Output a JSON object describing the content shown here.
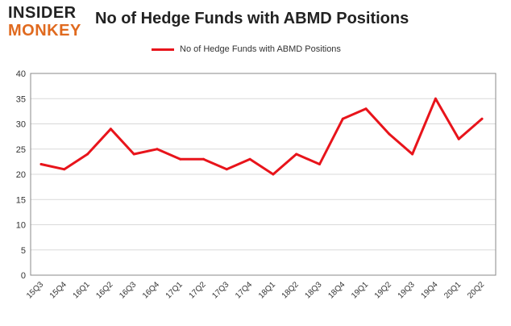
{
  "logo": {
    "line1": "INSIDER",
    "line2": "MONKEY"
  },
  "colors": {
    "series": "#e8141b",
    "grid": "#d9d9d9",
    "frame": "#888888",
    "logo_dark": "#222222",
    "logo_orange": "#e06a1f"
  },
  "chart_data": {
    "type": "line",
    "title": "No of Hedge Funds with ABMD Positions",
    "categories": [
      "15Q3",
      "15Q4",
      "16Q1",
      "16Q2",
      "16Q3",
      "16Q4",
      "17Q1",
      "17Q2",
      "17Q3",
      "17Q4",
      "18Q1",
      "18Q2",
      "18Q3",
      "18Q4",
      "19Q1",
      "19Q2",
      "19Q3",
      "19Q4",
      "20Q1",
      "20Q2"
    ],
    "series": [
      {
        "name": "No of Hedge Funds with ABMD Positions",
        "values": [
          22,
          21,
          24,
          29,
          24,
          25,
          23,
          23,
          21,
          23,
          20,
          24,
          22,
          31,
          33,
          28,
          24,
          35,
          27,
          31
        ]
      }
    ],
    "ylim": [
      0,
      40
    ],
    "yticks": [
      0,
      5,
      10,
      15,
      20,
      25,
      30,
      35,
      40
    ],
    "xlabel": "",
    "ylabel": "",
    "grid": true,
    "legend": "top"
  }
}
